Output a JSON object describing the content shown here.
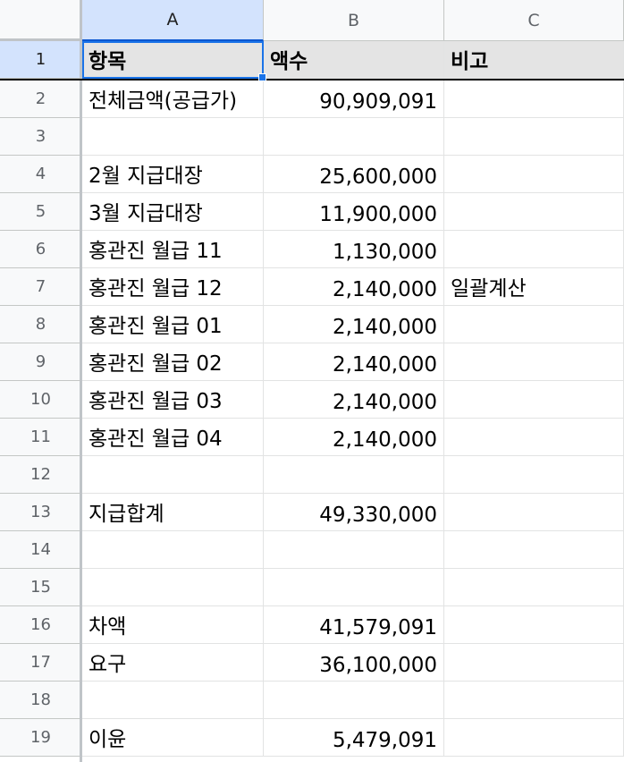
{
  "columns": [
    "A",
    "B",
    "C"
  ],
  "active_cell": "A1",
  "header_row": {
    "row_number": "1",
    "a": "항목",
    "b": "액수",
    "c": "비고"
  },
  "rows": [
    {
      "n": "2",
      "a": "전체금액(공급가)",
      "b": "90,909,091",
      "c": ""
    },
    {
      "n": "3",
      "a": "",
      "b": "",
      "c": ""
    },
    {
      "n": "4",
      "a": "2월 지급대장",
      "b": "25,600,000",
      "c": ""
    },
    {
      "n": "5",
      "a": "3월 지급대장",
      "b": "11,900,000",
      "c": ""
    },
    {
      "n": "6",
      "a": "홍관진 월급 11",
      "b": "1,130,000",
      "c": ""
    },
    {
      "n": "7",
      "a": "홍관진 월급 12",
      "b": "2,140,000",
      "c": "일괄계산"
    },
    {
      "n": "8",
      "a": "홍관진 월급 01",
      "b": "2,140,000",
      "c": ""
    },
    {
      "n": "9",
      "a": "홍관진 월급 02",
      "b": "2,140,000",
      "c": ""
    },
    {
      "n": "10",
      "a": "홍관진 월급 03",
      "b": "2,140,000",
      "c": ""
    },
    {
      "n": "11",
      "a": "홍관진 월급 04",
      "b": "2,140,000",
      "c": ""
    },
    {
      "n": "12",
      "a": "",
      "b": "",
      "c": ""
    },
    {
      "n": "13",
      "a": "지급합계",
      "b": "49,330,000",
      "c": ""
    },
    {
      "n": "14",
      "a": "",
      "b": "",
      "c": ""
    },
    {
      "n": "15",
      "a": "",
      "b": "",
      "c": ""
    },
    {
      "n": "16",
      "a": "차액",
      "b": "41,579,091",
      "c": ""
    },
    {
      "n": "17",
      "a": "요구",
      "b": "36,100,000",
      "c": ""
    },
    {
      "n": "18",
      "a": "",
      "b": "",
      "c": ""
    },
    {
      "n": "19",
      "a": "이윤",
      "b": "5,479,091",
      "c": ""
    }
  ]
}
